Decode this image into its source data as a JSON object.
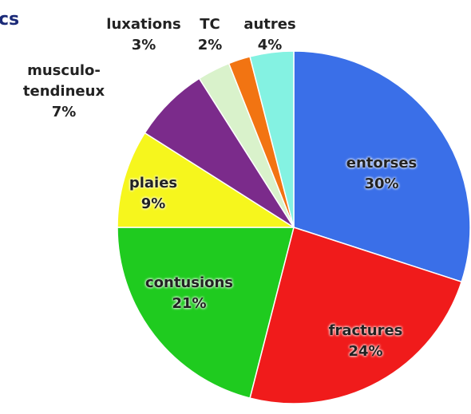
{
  "chart_data": {
    "type": "pie",
    "title": "cs",
    "categories": [
      "entorses",
      "fractures",
      "contusions",
      "plaies",
      "musculo-tendineux",
      "luxations",
      "TC",
      "autres"
    ],
    "values": [
      30,
      24,
      21,
      9,
      7,
      3,
      2,
      4
    ],
    "value_labels": [
      "30%",
      "24%",
      "21%",
      "9%",
      "7%",
      "3%",
      "2%",
      "4%"
    ],
    "colors": [
      "#3a6fe8",
      "#f01b1b",
      "#1fcb1f",
      "#f6f61d",
      "#7b2b8b",
      "#d9f2cb",
      "#f27412",
      "#84f2e2"
    ]
  }
}
